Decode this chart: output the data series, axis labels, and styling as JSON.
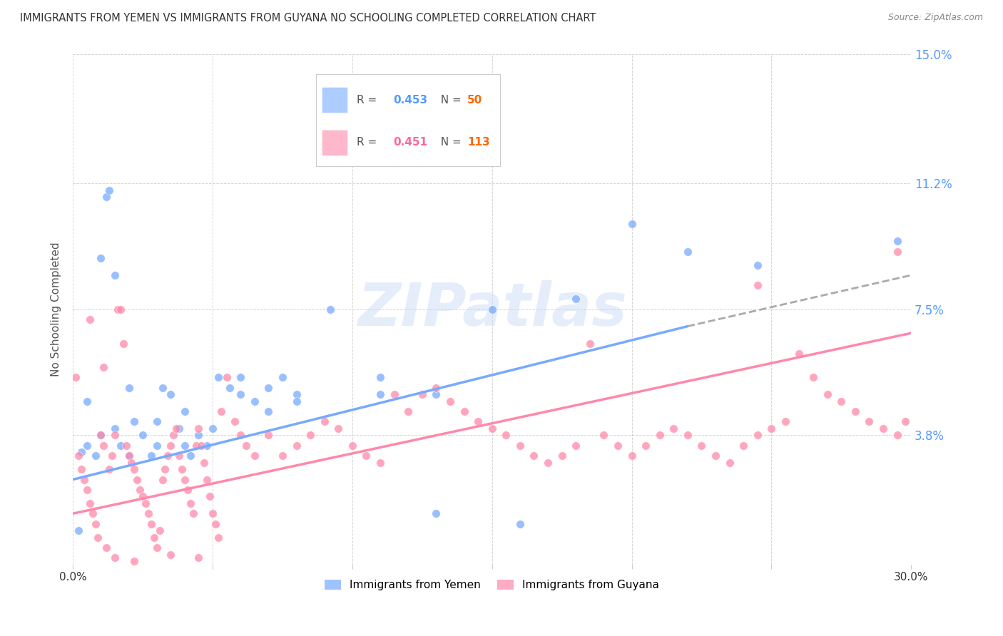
{
  "title": "IMMIGRANTS FROM YEMEN VS IMMIGRANTS FROM GUYANA NO SCHOOLING COMPLETED CORRELATION CHART",
  "source": "Source: ZipAtlas.com",
  "ylabel": "No Schooling Completed",
  "xlim": [
    0.0,
    30.0
  ],
  "ylim": [
    0.0,
    15.0
  ],
  "yticks": [
    0.0,
    3.8,
    7.5,
    11.2,
    15.0
  ],
  "ytick_labels": [
    "",
    "3.8%",
    "7.5%",
    "11.2%",
    "15.0%"
  ],
  "xticks": [
    0.0,
    5.0,
    10.0,
    15.0,
    20.0,
    25.0,
    30.0
  ],
  "xtick_labels": [
    "0.0%",
    "",
    "",
    "",
    "",
    "",
    "30.0%"
  ],
  "grid_color": "#cccccc",
  "background_color": "#ffffff",
  "watermark": "ZIPatlas",
  "yemen_color": "#77aaff",
  "guyana_color": "#ff88aa",
  "title_color": "#333333",
  "scatter_yemen": [
    [
      0.3,
      3.3
    ],
    [
      0.5,
      4.8
    ],
    [
      0.8,
      3.2
    ],
    [
      1.0,
      9.0
    ],
    [
      1.2,
      10.8
    ],
    [
      1.3,
      11.0
    ],
    [
      1.5,
      8.5
    ],
    [
      1.7,
      3.5
    ],
    [
      2.0,
      5.2
    ],
    [
      2.2,
      4.2
    ],
    [
      2.5,
      3.8
    ],
    [
      2.8,
      3.2
    ],
    [
      3.0,
      3.5
    ],
    [
      3.2,
      5.2
    ],
    [
      3.5,
      5.0
    ],
    [
      3.8,
      4.0
    ],
    [
      4.0,
      4.5
    ],
    [
      4.2,
      3.2
    ],
    [
      4.5,
      3.8
    ],
    [
      4.8,
      3.5
    ],
    [
      5.2,
      5.5
    ],
    [
      5.6,
      5.2
    ],
    [
      6.0,
      5.0
    ],
    [
      6.5,
      4.8
    ],
    [
      7.0,
      4.5
    ],
    [
      7.5,
      5.5
    ],
    [
      8.0,
      5.0
    ],
    [
      9.2,
      7.5
    ],
    [
      11.0,
      5.5
    ],
    [
      13.0,
      5.0
    ],
    [
      15.0,
      7.5
    ],
    [
      18.0,
      7.8
    ],
    [
      20.0,
      10.0
    ],
    [
      22.0,
      9.2
    ],
    [
      24.5,
      8.8
    ],
    [
      0.2,
      1.0
    ],
    [
      13.0,
      1.5
    ],
    [
      16.0,
      1.2
    ],
    [
      0.5,
      3.5
    ],
    [
      1.0,
      3.8
    ],
    [
      1.5,
      4.0
    ],
    [
      2.0,
      3.2
    ],
    [
      3.0,
      4.2
    ],
    [
      4.0,
      3.5
    ],
    [
      5.0,
      4.0
    ],
    [
      6.0,
      5.5
    ],
    [
      7.0,
      5.2
    ],
    [
      8.0,
      4.8
    ],
    [
      11.0,
      5.0
    ],
    [
      29.5,
      9.5
    ]
  ],
  "scatter_guyana": [
    [
      0.1,
      5.5
    ],
    [
      0.2,
      3.2
    ],
    [
      0.3,
      2.8
    ],
    [
      0.4,
      2.5
    ],
    [
      0.5,
      2.2
    ],
    [
      0.6,
      1.8
    ],
    [
      0.7,
      1.5
    ],
    [
      0.8,
      1.2
    ],
    [
      0.9,
      0.8
    ],
    [
      1.0,
      3.8
    ],
    [
      1.1,
      3.5
    ],
    [
      1.2,
      0.5
    ],
    [
      1.3,
      2.8
    ],
    [
      1.4,
      3.2
    ],
    [
      1.5,
      3.8
    ],
    [
      1.6,
      7.5
    ],
    [
      1.7,
      7.5
    ],
    [
      1.8,
      6.5
    ],
    [
      1.9,
      3.5
    ],
    [
      2.0,
      3.2
    ],
    [
      2.1,
      3.0
    ],
    [
      2.2,
      2.8
    ],
    [
      2.3,
      2.5
    ],
    [
      2.4,
      2.2
    ],
    [
      2.5,
      2.0
    ],
    [
      2.6,
      1.8
    ],
    [
      2.7,
      1.5
    ],
    [
      2.8,
      1.2
    ],
    [
      2.9,
      0.8
    ],
    [
      3.0,
      0.5
    ],
    [
      3.1,
      1.0
    ],
    [
      3.2,
      2.5
    ],
    [
      3.3,
      2.8
    ],
    [
      3.4,
      3.2
    ],
    [
      3.5,
      3.5
    ],
    [
      3.6,
      3.8
    ],
    [
      3.7,
      4.0
    ],
    [
      3.8,
      3.2
    ],
    [
      3.9,
      2.8
    ],
    [
      4.0,
      2.5
    ],
    [
      4.1,
      2.2
    ],
    [
      4.2,
      1.8
    ],
    [
      4.3,
      1.5
    ],
    [
      4.4,
      3.5
    ],
    [
      4.5,
      4.0
    ],
    [
      4.6,
      3.5
    ],
    [
      4.7,
      3.0
    ],
    [
      4.8,
      2.5
    ],
    [
      4.9,
      2.0
    ],
    [
      5.0,
      1.5
    ],
    [
      5.1,
      1.2
    ],
    [
      5.2,
      0.8
    ],
    [
      5.3,
      4.5
    ],
    [
      5.5,
      5.5
    ],
    [
      5.8,
      4.2
    ],
    [
      6.0,
      3.8
    ],
    [
      6.2,
      3.5
    ],
    [
      6.5,
      3.2
    ],
    [
      7.0,
      3.8
    ],
    [
      7.5,
      3.2
    ],
    [
      8.0,
      3.5
    ],
    [
      8.5,
      3.8
    ],
    [
      9.0,
      4.2
    ],
    [
      9.5,
      4.0
    ],
    [
      10.0,
      3.5
    ],
    [
      10.5,
      3.2
    ],
    [
      11.0,
      3.0
    ],
    [
      11.5,
      5.0
    ],
    [
      12.0,
      4.5
    ],
    [
      12.5,
      5.0
    ],
    [
      13.0,
      5.2
    ],
    [
      13.5,
      4.8
    ],
    [
      14.0,
      4.5
    ],
    [
      14.5,
      4.2
    ],
    [
      15.0,
      4.0
    ],
    [
      15.5,
      3.8
    ],
    [
      16.0,
      3.5
    ],
    [
      16.5,
      3.2
    ],
    [
      17.0,
      3.0
    ],
    [
      17.5,
      3.2
    ],
    [
      18.0,
      3.5
    ],
    [
      18.5,
      6.5
    ],
    [
      19.0,
      3.8
    ],
    [
      19.5,
      3.5
    ],
    [
      20.0,
      3.2
    ],
    [
      20.5,
      3.5
    ],
    [
      21.0,
      3.8
    ],
    [
      21.5,
      4.0
    ],
    [
      22.0,
      3.8
    ],
    [
      22.5,
      3.5
    ],
    [
      23.0,
      3.2
    ],
    [
      23.5,
      3.0
    ],
    [
      24.0,
      3.5
    ],
    [
      24.5,
      3.8
    ],
    [
      25.0,
      4.0
    ],
    [
      25.5,
      4.2
    ],
    [
      26.0,
      6.2
    ],
    [
      26.5,
      5.5
    ],
    [
      27.0,
      5.0
    ],
    [
      27.5,
      4.8
    ],
    [
      28.0,
      4.5
    ],
    [
      28.5,
      4.2
    ],
    [
      29.0,
      4.0
    ],
    [
      29.5,
      3.8
    ],
    [
      29.8,
      4.2
    ],
    [
      1.5,
      0.2
    ],
    [
      2.2,
      0.1
    ],
    [
      3.5,
      0.3
    ],
    [
      4.5,
      0.2
    ],
    [
      0.6,
      7.2
    ],
    [
      1.1,
      5.8
    ],
    [
      29.5,
      9.2
    ],
    [
      24.5,
      8.2
    ]
  ],
  "trend_yemen_x0": 0.0,
  "trend_yemen_y0": 2.5,
  "trend_yemen_x1": 30.0,
  "trend_yemen_y1": 8.5,
  "trend_guyana_x0": 0.0,
  "trend_guyana_y0": 1.5,
  "trend_guyana_x1": 30.0,
  "trend_guyana_y1": 6.8,
  "trend_yemen_dashed_start_x": 22.0,
  "trend_yemen_dashed_start_y": 7.0
}
